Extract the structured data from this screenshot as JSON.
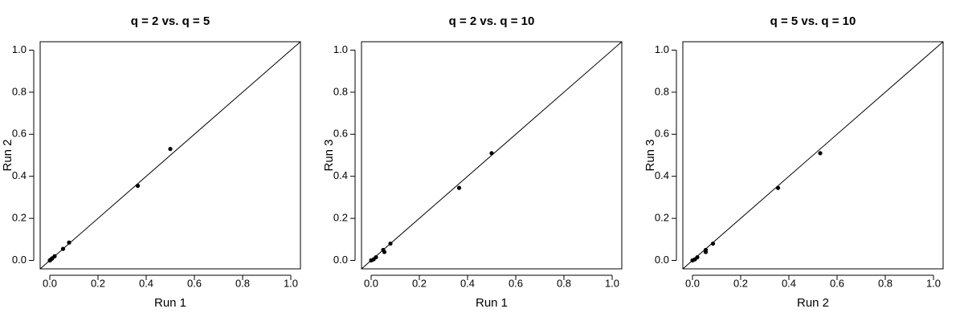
{
  "chart_data": [
    {
      "type": "scatter",
      "title": "q = 2 vs. q = 5",
      "x_label": "Run 1",
      "y_label": "Run 2",
      "x": [
        0,
        0.005,
        0.01,
        0.02,
        0.055,
        0.08,
        0.365,
        0.5
      ],
      "values": [
        0,
        0.005,
        0.01,
        0.02,
        0.055,
        0.085,
        0.355,
        0.53
      ],
      "color": "#000000",
      "xlim": [
        -0.04,
        1.04
      ],
      "ylim": [
        -0.04,
        1.04
      ],
      "xticks": [
        {
          "value": 0,
          "label": "0.0"
        },
        0.2,
        0.4,
        0.6,
        0.8,
        {
          "value": 1,
          "label": "1.0"
        }
      ],
      "yticks": [
        {
          "value": 0,
          "label": "0.0"
        },
        0.2,
        0.4,
        0.6,
        0.8,
        {
          "value": 1,
          "label": "1.0"
        }
      ]
    },
    {
      "type": "scatter",
      "title": "q = 2 vs. q = 10",
      "x_label": "Run 1",
      "y_label": "Run 3",
      "x": [
        0,
        0.01,
        0.02,
        0.05,
        0.055,
        0.08,
        0.365,
        0.5
      ],
      "values": [
        0,
        0.005,
        0.015,
        0.05,
        0.04,
        0.08,
        0.345,
        0.51
      ],
      "color": "#000000",
      "xlim": [
        -0.04,
        1.04
      ],
      "ylim": [
        -0.04,
        1.04
      ],
      "xticks": [
        {
          "value": 0,
          "label": "0.0"
        },
        0.2,
        0.4,
        0.6,
        0.8,
        {
          "value": 1,
          "label": "1.0"
        }
      ],
      "yticks": [
        {
          "value": 0,
          "label": "0.0"
        },
        0.2,
        0.4,
        0.6,
        0.8,
        {
          "value": 1,
          "label": "1.0"
        }
      ]
    },
    {
      "type": "scatter",
      "title": "q = 5 vs. q = 10",
      "x_label": "Run 2",
      "y_label": "Run 3",
      "x": [
        0,
        0.01,
        0.02,
        0.055,
        0.055,
        0.085,
        0.355,
        0.53
      ],
      "values": [
        0,
        0.005,
        0.015,
        0.05,
        0.04,
        0.08,
        0.345,
        0.51
      ],
      "color": "#000000",
      "xlim": [
        -0.04,
        1.04
      ],
      "ylim": [
        -0.04,
        1.04
      ],
      "xticks": [
        {
          "value": 0,
          "label": "0.0"
        },
        0.2,
        0.4,
        0.6,
        0.8,
        {
          "value": 1,
          "label": "1.0"
        }
      ],
      "yticks": [
        {
          "value": 0,
          "label": "0.0"
        },
        0.2,
        0.4,
        0.6,
        0.8,
        {
          "value": 1,
          "label": "1.0"
        }
      ]
    }
  ]
}
